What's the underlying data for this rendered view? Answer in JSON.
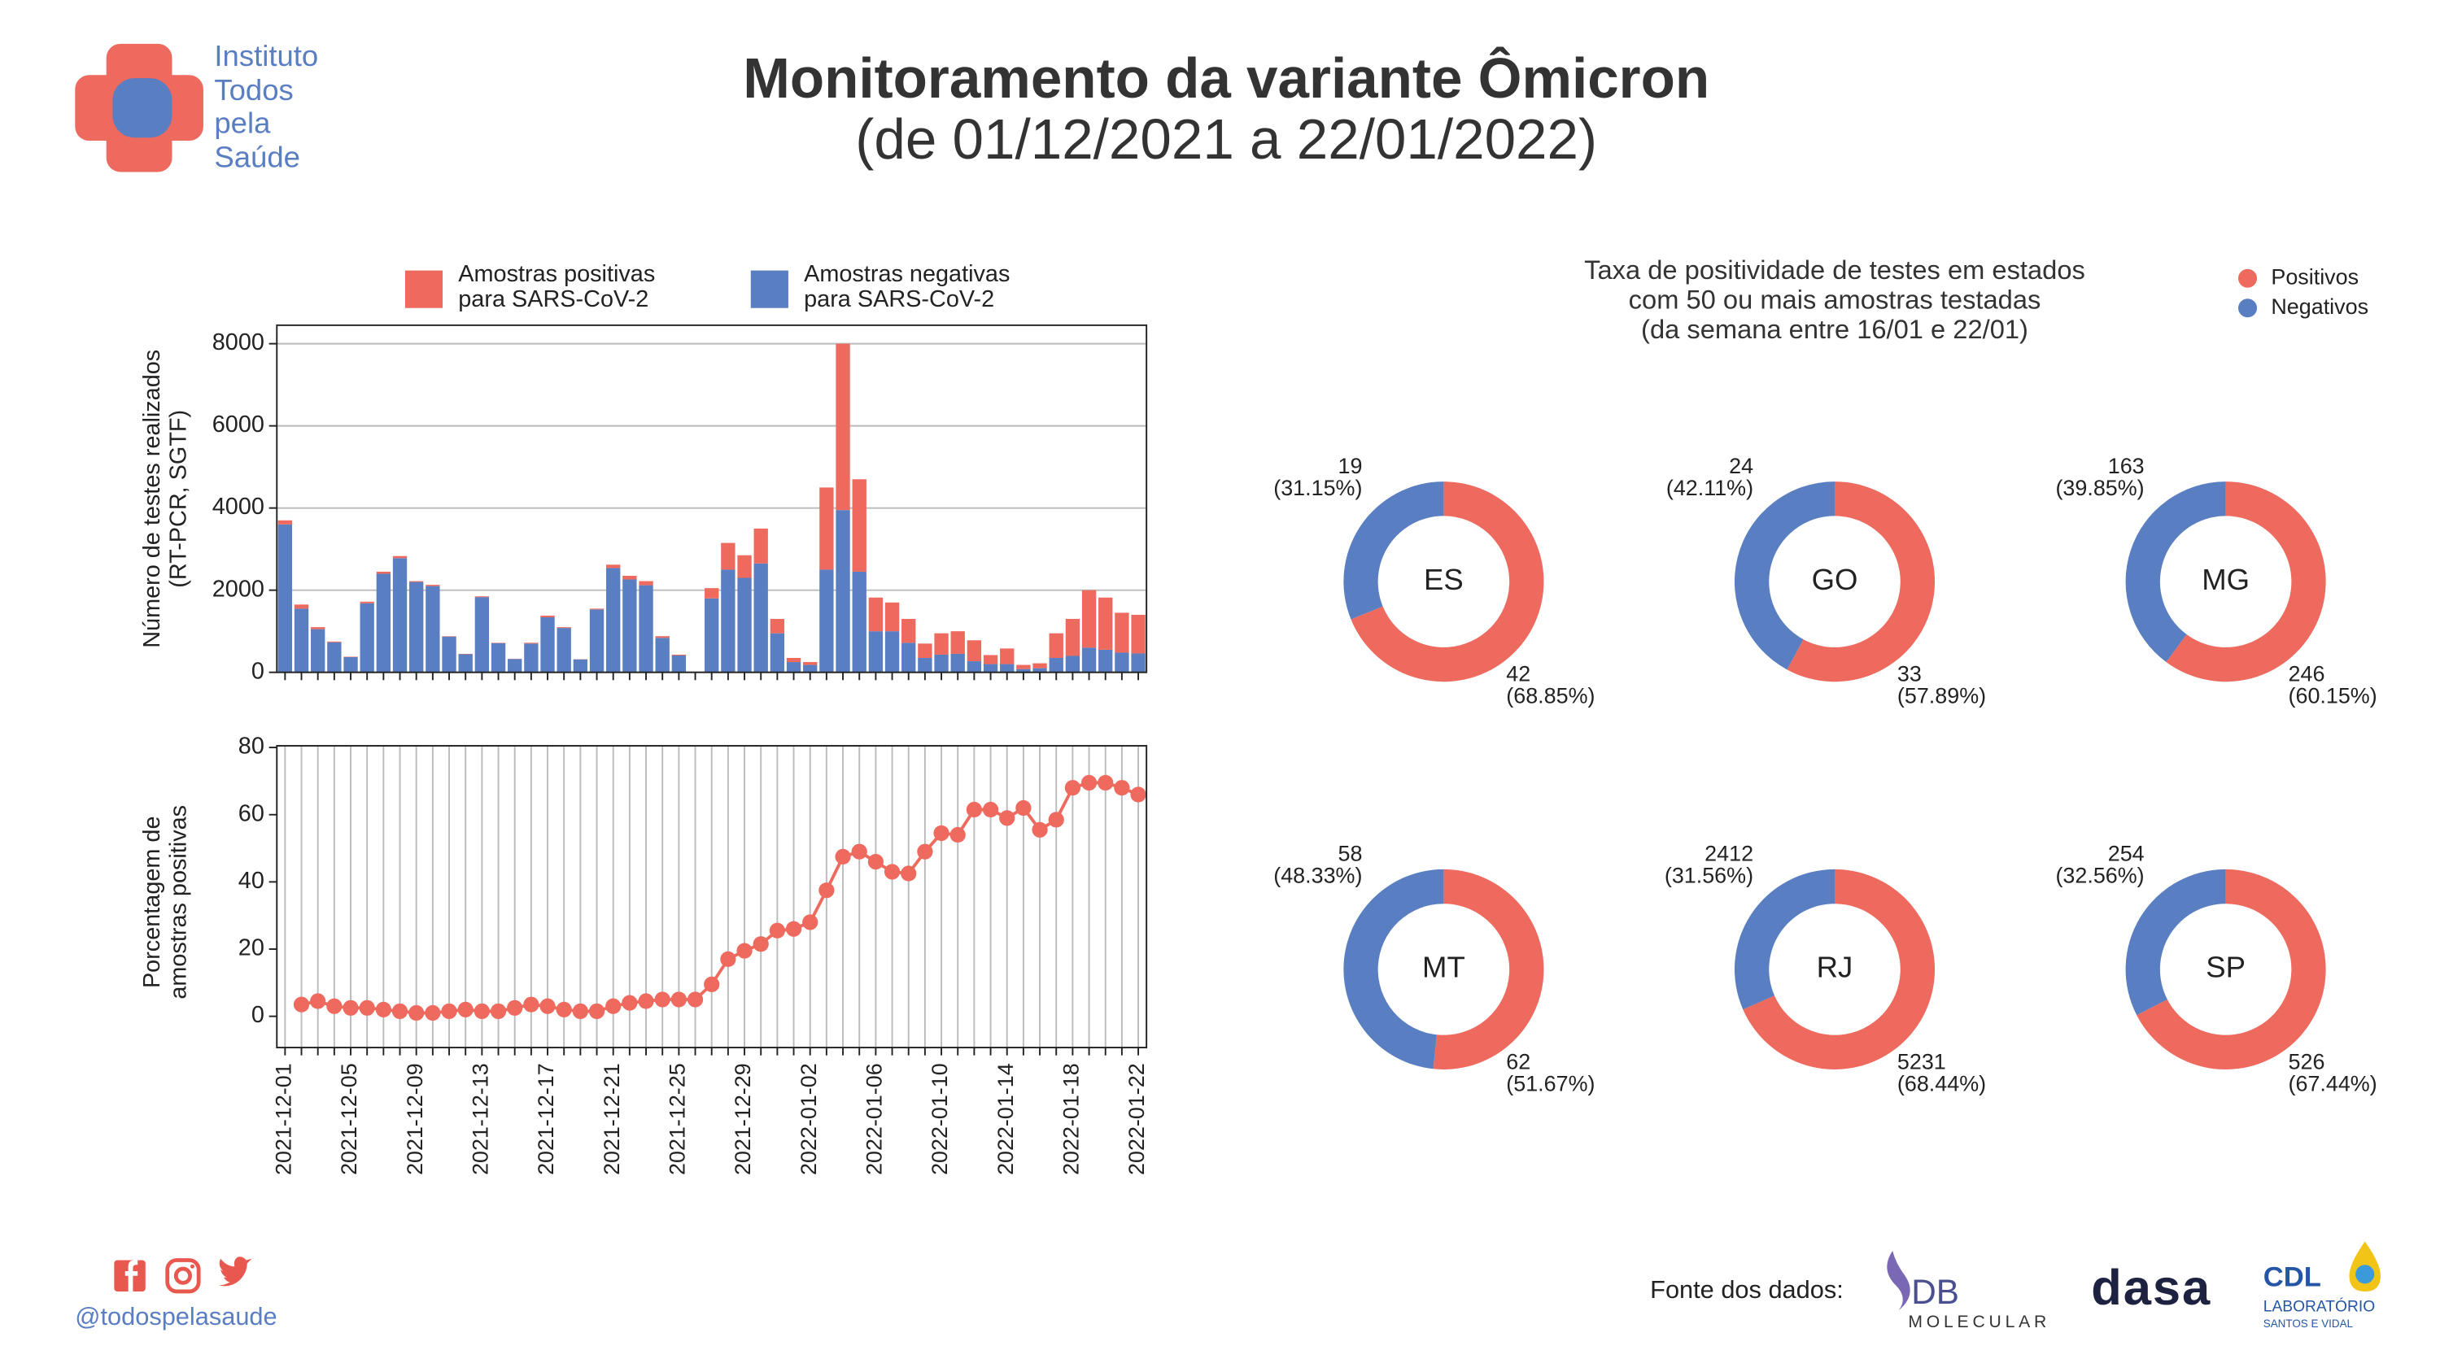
{
  "header": {
    "logo_lines": [
      "Instituto",
      "Todos",
      "pela",
      "Saúde"
    ],
    "title": "Monitoramento da variante Ômicron",
    "subtitle": "(de 01/12/2021 a 22/01/2022)"
  },
  "chart_data": [
    {
      "type": "bar",
      "stacked": true,
      "ylabel": [
        "Número de testes realizados",
        "(RT-PCR, SGTF)"
      ],
      "categories": [
        "2021-12-01",
        "2021-12-02",
        "2021-12-03",
        "2021-12-04",
        "2021-12-05",
        "2021-12-06",
        "2021-12-07",
        "2021-12-08",
        "2021-12-09",
        "2021-12-10",
        "2021-12-11",
        "2021-12-12",
        "2021-12-13",
        "2021-12-14",
        "2021-12-15",
        "2021-12-16",
        "2021-12-17",
        "2021-12-18",
        "2021-12-19",
        "2021-12-20",
        "2021-12-21",
        "2021-12-22",
        "2021-12-23",
        "2021-12-24",
        "2021-12-25",
        "2021-12-26",
        "2021-12-27",
        "2021-12-28",
        "2021-12-29",
        "2021-12-30",
        "2021-12-31",
        "2022-01-01",
        "2022-01-02",
        "2022-01-03",
        "2022-01-04",
        "2022-01-05",
        "2022-01-06",
        "2022-01-07",
        "2022-01-08",
        "2022-01-09",
        "2022-01-10",
        "2022-01-11",
        "2022-01-12",
        "2022-01-13",
        "2022-01-14",
        "2022-01-15",
        "2022-01-16",
        "2022-01-17",
        "2022-01-18",
        "2022-01-19",
        "2022-01-20",
        "2022-01-21",
        "2022-01-22"
      ],
      "series": [
        {
          "name": "Amostras positivas para SARS-CoV-2",
          "color": "#ef6a5e",
          "values": [
            100,
            100,
            50,
            20,
            10,
            40,
            50,
            50,
            20,
            30,
            10,
            10,
            20,
            10,
            5,
            20,
            40,
            20,
            5,
            20,
            80,
            90,
            100,
            40,
            20,
            0,
            250,
            650,
            550,
            850,
            350,
            100,
            70,
            2000,
            4050,
            2250,
            820,
            700,
            580,
            350,
            520,
            550,
            510,
            220,
            380,
            100,
            120,
            600,
            900,
            1400,
            1270,
            970,
            940
          ]
        },
        {
          "name": "Amostras negativas para SARS-CoV-2",
          "color": "#5a7ec2",
          "values": [
            3600,
            1550,
            1050,
            730,
            370,
            1680,
            2400,
            2780,
            2200,
            2100,
            870,
            440,
            1830,
            710,
            325,
            700,
            1340,
            1080,
            315,
            1530,
            2540,
            2260,
            2120,
            840,
            410,
            0,
            1800,
            2500,
            2300,
            2650,
            950,
            250,
            180,
            2500,
            3950,
            2450,
            1000,
            1000,
            720,
            350,
            430,
            450,
            270,
            200,
            200,
            80,
            100,
            350,
            400,
            600,
            550,
            480,
            460
          ]
        }
      ],
      "ylim": [
        0,
        8450
      ],
      "yticks": [
        0,
        2000,
        4000,
        6000,
        8000
      ],
      "grid": "y"
    },
    {
      "type": "line",
      "ylabel": [
        "Porcentagem de",
        "amostras positivas"
      ],
      "categories": [
        "2021-12-01",
        "2021-12-02",
        "2021-12-03",
        "2021-12-04",
        "2021-12-05",
        "2021-12-06",
        "2021-12-07",
        "2021-12-08",
        "2021-12-09",
        "2021-12-10",
        "2021-12-11",
        "2021-12-12",
        "2021-12-13",
        "2021-12-14",
        "2021-12-15",
        "2021-12-16",
        "2021-12-17",
        "2021-12-18",
        "2021-12-19",
        "2021-12-20",
        "2021-12-21",
        "2021-12-22",
        "2021-12-23",
        "2021-12-24",
        "2021-12-25",
        "2021-12-26",
        "2021-12-27",
        "2021-12-28",
        "2021-12-29",
        "2021-12-30",
        "2021-12-31",
        "2022-01-01",
        "2022-01-02",
        "2022-01-03",
        "2022-01-04",
        "2022-01-05",
        "2022-01-06",
        "2022-01-07",
        "2022-01-08",
        "2022-01-09",
        "2022-01-10",
        "2022-01-11",
        "2022-01-12",
        "2022-01-13",
        "2022-01-14",
        "2022-01-15",
        "2022-01-16",
        "2022-01-17",
        "2022-01-18",
        "2022-01-19",
        "2022-01-20",
        "2022-01-21",
        "2022-01-22"
      ],
      "color": "#ef6a5e",
      "values": [
        null,
        3.5,
        4.5,
        3,
        2.5,
        2.5,
        2,
        1.5,
        1,
        1,
        1.5,
        2,
        1.5,
        1.5,
        2.5,
        3.5,
        3,
        2,
        1.5,
        1.5,
        3,
        4,
        4.5,
        5,
        5,
        5,
        9.5,
        17,
        19.5,
        21.5,
        25.5,
        26,
        28,
        37.5,
        47.5,
        49,
        46,
        43,
        42.5,
        49,
        54.5,
        54,
        61.5,
        61.5,
        59,
        62,
        55.5,
        58.5,
        68,
        69.5,
        69.5,
        68,
        66
      ],
      "ylim": [
        -9.3,
        80.5
      ],
      "yticks": [
        0,
        20,
        40,
        60,
        80
      ],
      "xtick_label_step": 4,
      "grid": "x"
    },
    {
      "type": "donut",
      "title": [
        "Taxa de positividade de testes em estados",
        "com 50 ou mais amostras testadas",
        "(da semana entre 16/01 e 22/01)"
      ],
      "series": [
        {
          "name": "Positivos",
          "color": "#ef6a5e"
        },
        {
          "name": "Negativos",
          "color": "#5a7ec2"
        }
      ],
      "groups": [
        {
          "name": "ES",
          "values": [
            42,
            19
          ],
          "percent_labels": [
            "(68.85%)",
            "(31.15%)"
          ]
        },
        {
          "name": "GO",
          "values": [
            33,
            24
          ],
          "percent_labels": [
            "(57.89%)",
            "(42.11%)"
          ]
        },
        {
          "name": "MG",
          "values": [
            246,
            163
          ],
          "percent_labels": [
            "(60.15%)",
            "(39.85%)"
          ]
        },
        {
          "name": "MT",
          "values": [
            62,
            58
          ],
          "percent_labels": [
            "(51.67%)",
            "(48.33%)"
          ]
        },
        {
          "name": "RJ",
          "values": [
            5231,
            2412
          ],
          "percent_labels": [
            "(68.44%)",
            "(31.56%)"
          ]
        },
        {
          "name": "SP",
          "values": [
            526,
            254
          ],
          "percent_labels": [
            "(67.44%)",
            "(32.56%)"
          ]
        }
      ]
    }
  ],
  "footer": {
    "handle": "@todospelasaude",
    "source_label": "Fonte dos dados:",
    "logos": [
      "DB",
      "MOLECULAR",
      "dasa",
      "CDL",
      "LABORATÓRIO",
      "SANTOS E VIDAL"
    ]
  }
}
